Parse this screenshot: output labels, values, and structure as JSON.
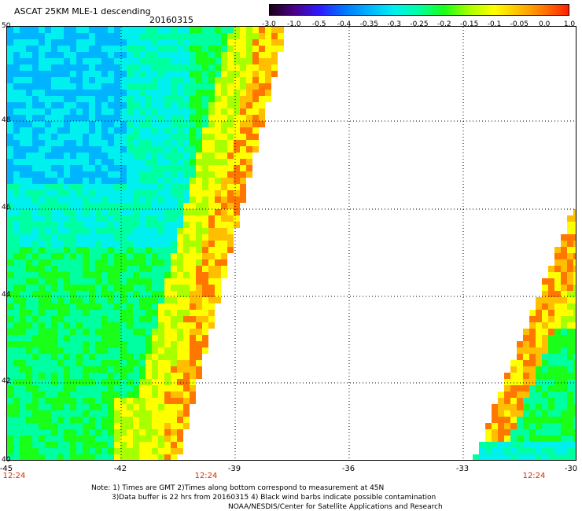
{
  "header": {
    "title": "ASCAT 25KM MLE-1 descending",
    "date": "20160315"
  },
  "colorbar": {
    "labels": [
      "-3.0",
      "-1.0",
      "-0.5",
      "-0.4",
      "-0.35",
      "-0.3",
      "-0.25",
      "-0.2",
      "-0.15",
      "-0.1",
      "-0.05",
      "0.0",
      "1.0"
    ],
    "colors": [
      "#1a0018",
      "#4b0088",
      "#2f1aff",
      "#0077ff",
      "#00b4ff",
      "#00f0f0",
      "#00ffa0",
      "#19ff19",
      "#a8ff00",
      "#ffff00",
      "#ffbf00",
      "#ff7700",
      "#ff2000"
    ]
  },
  "axes": {
    "y_labels": [
      "50",
      "48",
      "46",
      "44",
      "42",
      "40"
    ],
    "x_labels": [
      "-45",
      "-42",
      "-39",
      "-36",
      "-33",
      "-30"
    ],
    "time_labels": [
      "12:24",
      "12:24",
      "12:24"
    ],
    "lat_range": [
      40,
      50
    ],
    "lon_range": [
      -45,
      -30
    ]
  },
  "notes": {
    "line1": "Note: 1) Times are GMT 2)Times along bottom correspond to measurement at 45N",
    "line2": "3)Data buffer is 22 hrs from 20160315 4) Black wind barbs indicate possible contamination",
    "line3": "NOAA/NESDIS/Center for Satellite Applications and Research"
  }
}
